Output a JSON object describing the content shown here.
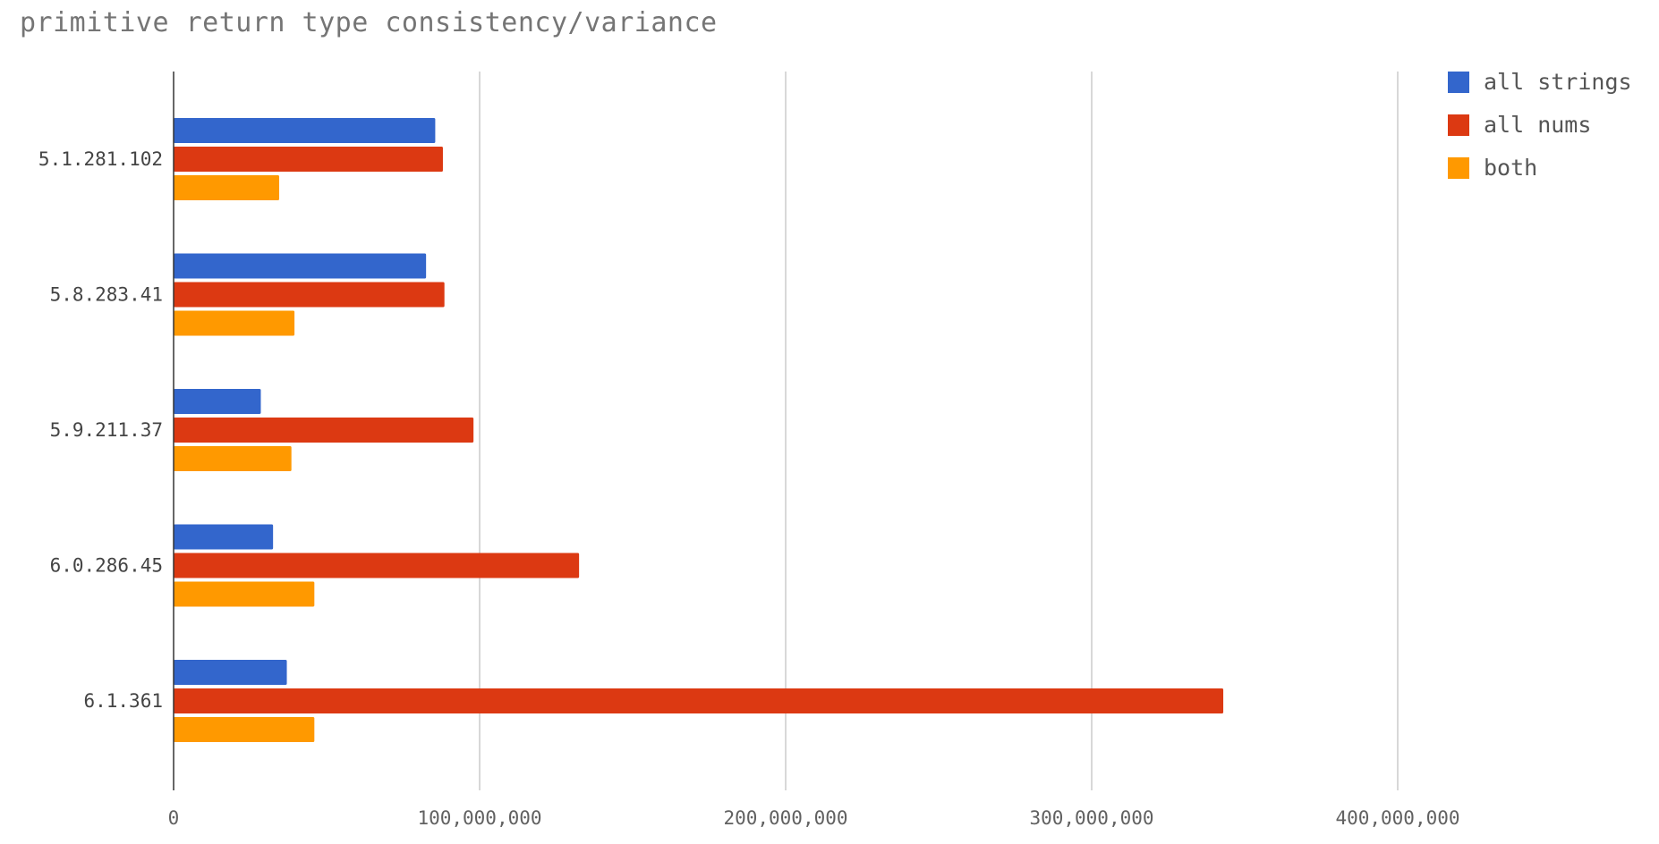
{
  "chart_data": {
    "type": "bar",
    "orientation": "horizontal",
    "title": "primitive return type consistency/variance",
    "xlabel": "",
    "ylabel": "",
    "xlim": [
      0,
      475000000
    ],
    "x_ticks": [
      0,
      100000000,
      200000000,
      300000000,
      400000000
    ],
    "x_tick_labels": [
      "0",
      "100,000,000",
      "200,000,000",
      "300,000,000",
      "400,000,000"
    ],
    "grid": true,
    "legend_position": "top-right",
    "categories": [
      "5.1.281.102",
      "5.8.283.41",
      "5.9.211.37",
      "6.0.286.45",
      "6.1.361"
    ],
    "series": [
      {
        "name": "all strings",
        "color": "#3366cc",
        "values": [
          85500000,
          82500000,
          28500000,
          32500000,
          37000000
        ]
      },
      {
        "name": "all nums",
        "color": "#dc3912",
        "values": [
          88000000,
          88500000,
          98000000,
          132500000,
          343000000
        ]
      },
      {
        "name": "both",
        "color": "#ff9900",
        "values": [
          34500000,
          39500000,
          38500000,
          46000000,
          46000000
        ]
      }
    ]
  }
}
